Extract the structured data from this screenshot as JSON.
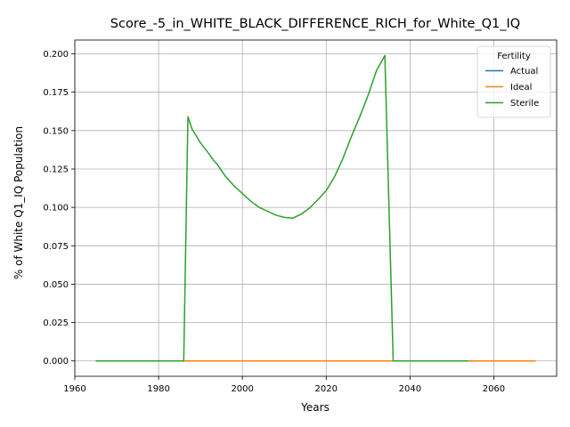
{
  "chart_data": {
    "type": "line",
    "title": "Score_-5_in_WHITE_BLACK_DIFFERENCE_RICH_for_White_Q1_IQ",
    "xlabel": "Years",
    "ylabel": "% of White Q1_IQ Population",
    "xlim": [
      1960,
      2075
    ],
    "ylim": [
      -0.01,
      0.209
    ],
    "xticks": [
      1960,
      1980,
      2000,
      2020,
      2040,
      2060
    ],
    "yticks": [
      0.0,
      0.025,
      0.05,
      0.075,
      0.1,
      0.125,
      0.15,
      0.175,
      0.2
    ],
    "ytick_labels": [
      "0.000",
      "0.025",
      "0.050",
      "0.075",
      "0.100",
      "0.125",
      "0.150",
      "0.175",
      "0.200"
    ],
    "grid": true,
    "legend": {
      "title": "Fertility",
      "placement": "top-right"
    },
    "series": [
      {
        "name": "Actual",
        "color": "#1f77b4",
        "x": [
          1965,
          2054
        ],
        "y": [
          0.0,
          0.0
        ]
      },
      {
        "name": "Ideal",
        "color": "#ff7f0e",
        "x": [
          1965,
          2070
        ],
        "y": [
          0.0,
          0.0
        ]
      },
      {
        "name": "Sterile",
        "color": "#2ca02c",
        "x": [
          1965,
          1986,
          1987,
          1988,
          1990,
          1992,
          1993,
          1994,
          1996,
          1998,
          2000,
          2002,
          2004,
          2006,
          2008,
          2010,
          2012,
          2014,
          2016,
          2018,
          2020,
          2022,
          2024,
          2026,
          2028,
          2030,
          2032,
          2034,
          2035,
          2036,
          2054
        ],
        "y": [
          0.0,
          0.0,
          0.159,
          0.151,
          0.142,
          0.135,
          0.131,
          0.128,
          0.12,
          0.114,
          0.109,
          0.104,
          0.1,
          0.0975,
          0.095,
          0.0935,
          0.093,
          0.0955,
          0.0995,
          0.105,
          0.111,
          0.12,
          0.132,
          0.146,
          0.159,
          0.173,
          0.189,
          0.199,
          0.0995,
          0.0,
          0.0
        ]
      }
    ]
  }
}
